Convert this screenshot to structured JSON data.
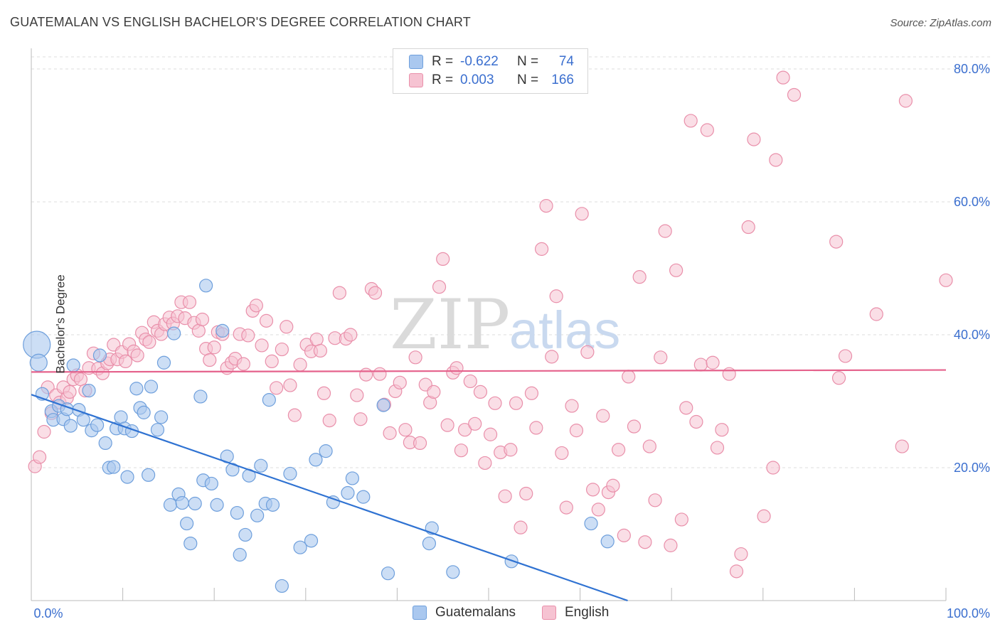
{
  "header": {
    "title": "GUATEMALAN VS ENGLISH BACHELOR'S DEGREE CORRELATION CHART",
    "source": "Source: ZipAtlas.com"
  },
  "legend": {
    "rows": [
      {
        "r_label": "R =",
        "r_value": "-0.622",
        "n_label": "N =",
        "n_value": "74"
      },
      {
        "r_label": "R =",
        "r_value": "0.003",
        "n_label": "N =",
        "n_value": "166"
      }
    ]
  },
  "watermark": {
    "zip": "ZIP",
    "atlas": "atlas"
  },
  "colors": {
    "blue_fill": "#aac8ef",
    "blue_stroke": "#6e9fdc",
    "blue_line": "#2f72d2",
    "pink_fill": "#f6c3d2",
    "pink_stroke": "#e98faa",
    "pink_line": "#e5628c",
    "tick_label": "#3b6fcf",
    "grid": "#dddddd"
  },
  "chart_data": {
    "type": "scatter",
    "title": "GUATEMALAN VS ENGLISH BACHELOR'S DEGREE CORRELATION CHART",
    "xlabel": "",
    "ylabel": "Bachelor's Degree",
    "xlim": [
      0,
      100
    ],
    "ylim": [
      0,
      80
    ],
    "x_tick_labels": [
      "0.0%",
      "100.0%"
    ],
    "y_tick_labels": [
      "20.0%",
      "40.0%",
      "60.0%",
      "80.0%"
    ],
    "y_ticks": [
      20,
      40,
      60,
      80
    ],
    "grid": "horizontal dashed",
    "legend_position": "top-center and bottom",
    "series": [
      {
        "name": "Guatemalans",
        "r": -0.622,
        "n": 74,
        "trend": {
          "x0": 0,
          "y0": 31.0,
          "x1": 65.2,
          "y1": 0
        },
        "points": [
          [
            0.6,
            38.5
          ],
          [
            0.8,
            35.8
          ],
          [
            1.2,
            31.1
          ],
          [
            2.2,
            28.5
          ],
          [
            2.4,
            27.2
          ],
          [
            3.0,
            29.3
          ],
          [
            3.5,
            27.3
          ],
          [
            3.9,
            28.8
          ],
          [
            4.3,
            26.3
          ],
          [
            4.6,
            35.4
          ],
          [
            5.2,
            28.7
          ],
          [
            5.7,
            27.2
          ],
          [
            6.3,
            31.6
          ],
          [
            6.6,
            25.6
          ],
          [
            7.2,
            26.4
          ],
          [
            7.5,
            36.9
          ],
          [
            8.1,
            23.7
          ],
          [
            8.5,
            20.0
          ],
          [
            9.0,
            20.1
          ],
          [
            9.3,
            25.9
          ],
          [
            9.8,
            27.6
          ],
          [
            10.2,
            25.9
          ],
          [
            10.5,
            18.6
          ],
          [
            11.0,
            25.5
          ],
          [
            11.5,
            31.9
          ],
          [
            11.9,
            29.0
          ],
          [
            12.3,
            28.3
          ],
          [
            12.8,
            18.9
          ],
          [
            13.1,
            32.2
          ],
          [
            13.8,
            25.7
          ],
          [
            14.2,
            27.6
          ],
          [
            14.5,
            35.8
          ],
          [
            15.2,
            14.4
          ],
          [
            15.6,
            40.2
          ],
          [
            16.1,
            16.0
          ],
          [
            16.5,
            14.7
          ],
          [
            17.0,
            11.6
          ],
          [
            17.4,
            8.6
          ],
          [
            17.9,
            14.6
          ],
          [
            18.5,
            30.7
          ],
          [
            18.8,
            18.1
          ],
          [
            19.1,
            47.4
          ],
          [
            19.7,
            17.6
          ],
          [
            20.3,
            14.4
          ],
          [
            20.9,
            40.6
          ],
          [
            21.4,
            21.7
          ],
          [
            22.0,
            19.7
          ],
          [
            22.5,
            13.2
          ],
          [
            22.8,
            6.9
          ],
          [
            23.4,
            9.9
          ],
          [
            23.8,
            18.8
          ],
          [
            24.7,
            12.8
          ],
          [
            25.1,
            20.3
          ],
          [
            25.6,
            14.6
          ],
          [
            26.0,
            30.2
          ],
          [
            26.4,
            14.4
          ],
          [
            27.4,
            2.2
          ],
          [
            28.3,
            19.1
          ],
          [
            29.4,
            8.0
          ],
          [
            30.6,
            9.0
          ],
          [
            31.1,
            21.2
          ],
          [
            32.2,
            22.5
          ],
          [
            33.0,
            14.8
          ],
          [
            34.6,
            16.2
          ],
          [
            35.1,
            18.4
          ],
          [
            36.3,
            15.6
          ],
          [
            38.5,
            29.4
          ],
          [
            39.0,
            4.1
          ],
          [
            43.5,
            8.6
          ],
          [
            43.8,
            10.9
          ],
          [
            46.1,
            4.3
          ],
          [
            52.5,
            5.9
          ],
          [
            61.2,
            11.6
          ],
          [
            63.0,
            8.9
          ]
        ]
      },
      {
        "name": "English",
        "r": 0.003,
        "n": 166,
        "trend": {
          "x0": 0,
          "y0": 34.4,
          "x1": 100,
          "y1": 34.7
        },
        "points": [
          [
            0.4,
            20.2
          ],
          [
            0.9,
            21.6
          ],
          [
            1.4,
            25.4
          ],
          [
            1.8,
            32.1
          ],
          [
            2.2,
            28.2
          ],
          [
            2.7,
            30.9
          ],
          [
            3.1,
            29.8
          ],
          [
            3.5,
            32.1
          ],
          [
            3.9,
            30.5
          ],
          [
            4.2,
            31.4
          ],
          [
            4.6,
            33.3
          ],
          [
            5.0,
            33.9
          ],
          [
            5.4,
            33.3
          ],
          [
            5.9,
            31.6
          ],
          [
            6.3,
            35.0
          ],
          [
            6.8,
            37.2
          ],
          [
            7.3,
            34.9
          ],
          [
            7.8,
            34.2
          ],
          [
            8.3,
            35.7
          ],
          [
            8.6,
            36.3
          ],
          [
            9.0,
            38.5
          ],
          [
            9.4,
            36.3
          ],
          [
            9.9,
            37.4
          ],
          [
            10.3,
            36.0
          ],
          [
            10.7,
            38.6
          ],
          [
            11.2,
            37.5
          ],
          [
            11.6,
            36.9
          ],
          [
            12.1,
            40.3
          ],
          [
            12.5,
            39.3
          ],
          [
            12.9,
            38.9
          ],
          [
            13.4,
            41.9
          ],
          [
            13.8,
            40.6
          ],
          [
            14.2,
            40.1
          ],
          [
            14.6,
            41.6
          ],
          [
            15.1,
            42.6
          ],
          [
            15.5,
            41.7
          ],
          [
            16.0,
            42.8
          ],
          [
            16.4,
            44.9
          ],
          [
            16.8,
            42.5
          ],
          [
            17.3,
            44.9
          ],
          [
            17.8,
            41.8
          ],
          [
            18.3,
            40.6
          ],
          [
            18.7,
            42.3
          ],
          [
            19.1,
            37.9
          ],
          [
            19.5,
            36.2
          ],
          [
            20.0,
            38.1
          ],
          [
            20.4,
            40.4
          ],
          [
            20.9,
            40.1
          ],
          [
            21.4,
            35.0
          ],
          [
            21.9,
            35.8
          ],
          [
            22.3,
            36.4
          ],
          [
            22.8,
            40.1
          ],
          [
            23.2,
            35.6
          ],
          [
            23.7,
            39.9
          ],
          [
            24.2,
            43.6
          ],
          [
            24.6,
            44.4
          ],
          [
            25.2,
            38.4
          ],
          [
            25.7,
            42.1
          ],
          [
            26.3,
            36.0
          ],
          [
            26.8,
            32.0
          ],
          [
            27.4,
            37.8
          ],
          [
            27.9,
            41.2
          ],
          [
            28.3,
            32.4
          ],
          [
            28.8,
            27.9
          ],
          [
            29.4,
            35.5
          ],
          [
            30.1,
            38.5
          ],
          [
            30.6,
            37.5
          ],
          [
            31.2,
            39.3
          ],
          [
            31.6,
            37.6
          ],
          [
            32.0,
            31.2
          ],
          [
            32.6,
            27.1
          ],
          [
            33.2,
            39.5
          ],
          [
            33.7,
            46.3
          ],
          [
            34.4,
            39.4
          ],
          [
            34.9,
            40.0
          ],
          [
            35.6,
            30.9
          ],
          [
            36.0,
            27.3
          ],
          [
            36.6,
            34.0
          ],
          [
            37.2,
            46.9
          ],
          [
            37.6,
            46.3
          ],
          [
            38.1,
            34.1
          ],
          [
            38.6,
            29.5
          ],
          [
            39.2,
            25.2
          ],
          [
            39.8,
            31.5
          ],
          [
            40.3,
            32.8
          ],
          [
            40.9,
            25.7
          ],
          [
            41.4,
            23.8
          ],
          [
            42.0,
            36.6
          ],
          [
            42.5,
            23.7
          ],
          [
            43.1,
            32.5
          ],
          [
            43.6,
            29.8
          ],
          [
            44.0,
            31.4
          ],
          [
            44.6,
            47.2
          ],
          [
            45.0,
            51.4
          ],
          [
            45.5,
            26.4
          ],
          [
            46.1,
            34.3
          ],
          [
            46.5,
            35.0
          ],
          [
            47.0,
            22.6
          ],
          [
            47.4,
            25.7
          ],
          [
            48.0,
            33.0
          ],
          [
            48.5,
            26.6
          ],
          [
            49.1,
            31.4
          ],
          [
            49.6,
            20.7
          ],
          [
            50.2,
            25.0
          ],
          [
            50.7,
            29.7
          ],
          [
            51.3,
            22.3
          ],
          [
            51.8,
            15.7
          ],
          [
            52.4,
            22.7
          ],
          [
            53.0,
            29.7
          ],
          [
            53.5,
            11.0
          ],
          [
            54.1,
            16.1
          ],
          [
            54.7,
            31.2
          ],
          [
            55.2,
            26.0
          ],
          [
            55.8,
            52.9
          ],
          [
            56.3,
            59.4
          ],
          [
            56.9,
            36.7
          ],
          [
            57.4,
            45.8
          ],
          [
            58.0,
            22.2
          ],
          [
            58.5,
            14.0
          ],
          [
            59.1,
            29.3
          ],
          [
            59.6,
            25.6
          ],
          [
            60.2,
            58.2
          ],
          [
            60.8,
            37.4
          ],
          [
            61.4,
            16.7
          ],
          [
            62.0,
            13.7
          ],
          [
            62.5,
            27.8
          ],
          [
            63.1,
            16.3
          ],
          [
            63.6,
            17.3
          ],
          [
            64.2,
            22.7
          ],
          [
            64.8,
            9.8
          ],
          [
            65.3,
            33.7
          ],
          [
            65.9,
            26.2
          ],
          [
            66.5,
            48.7
          ],
          [
            67.1,
            8.8
          ],
          [
            67.6,
            23.2
          ],
          [
            68.2,
            15.1
          ],
          [
            68.8,
            36.6
          ],
          [
            69.3,
            55.6
          ],
          [
            69.9,
            8.3
          ],
          [
            70.5,
            49.7
          ],
          [
            71.1,
            12.2
          ],
          [
            71.6,
            29.0
          ],
          [
            72.1,
            72.2
          ],
          [
            72.7,
            26.9
          ],
          [
            73.2,
            35.5
          ],
          [
            73.9,
            70.8
          ],
          [
            74.5,
            35.8
          ],
          [
            75.0,
            23.0
          ],
          [
            75.5,
            25.7
          ],
          [
            76.3,
            34.1
          ],
          [
            77.1,
            4.4
          ],
          [
            77.6,
            7.0
          ],
          [
            78.4,
            56.2
          ],
          [
            79.0,
            69.4
          ],
          [
            80.1,
            12.7
          ],
          [
            81.1,
            20.0
          ],
          [
            81.4,
            66.3
          ],
          [
            82.2,
            78.7
          ],
          [
            83.4,
            76.1
          ],
          [
            88.0,
            54.0
          ],
          [
            88.3,
            33.5
          ],
          [
            89.0,
            36.8
          ],
          [
            92.4,
            43.1
          ],
          [
            95.2,
            23.2
          ],
          [
            95.6,
            75.2
          ],
          [
            100.0,
            48.2
          ]
        ]
      }
    ]
  },
  "bottom_legend": {
    "items": [
      {
        "label": "Guatemalans"
      },
      {
        "label": "English"
      }
    ]
  }
}
